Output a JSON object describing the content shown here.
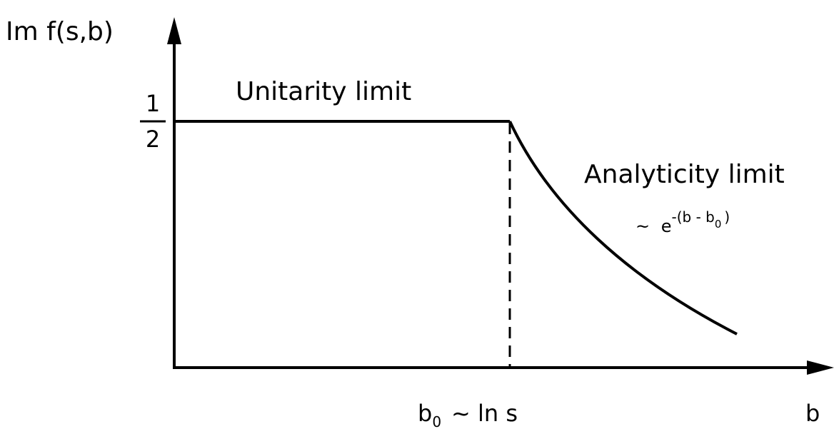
{
  "y_axis_label": "Im f(s,b)",
  "x_axis_label": "b",
  "y_tick": {
    "numerator": "1",
    "denominator": "2"
  },
  "x_tick": {
    "base": "b",
    "sub": "0",
    "rest": "~ ln s"
  },
  "annotations": {
    "unitarity": "Unitarity limit",
    "analyticity": "Analyticity limit",
    "falloff": {
      "prefix": "~",
      "base": "e",
      "sup": "-(b - b",
      "sup_sub": "0",
      "sup_end": ")"
    }
  }
}
